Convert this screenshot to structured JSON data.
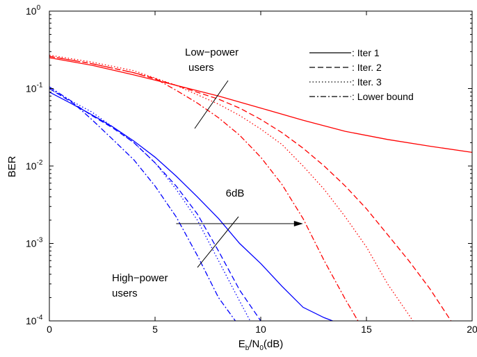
{
  "chart_data": {
    "type": "line",
    "xlabel_main": "E",
    "xlabel_sub1": "b",
    "xlabel_mid": "/N",
    "xlabel_sub2": "0",
    "xlabel_tail": "(dB)",
    "ylabel": "BER",
    "xlim": [
      0,
      20
    ],
    "ylim": [
      0.0001,
      1
    ],
    "yscale": "log",
    "grid": false,
    "x_ticks": [
      "0",
      "5",
      "10",
      "15",
      "20"
    ],
    "y_ticks": [
      {
        "base": "10",
        "exp": "0",
        "value": 1
      },
      {
        "base": "10",
        "exp": "-1",
        "value": 0.1
      },
      {
        "base": "10",
        "exp": "-2",
        "value": 0.01
      },
      {
        "base": "10",
        "exp": "-3",
        "value": 0.001
      },
      {
        "base": "10",
        "exp": "-4",
        "value": 0.0001
      }
    ],
    "legend": {
      "placement": "top-right",
      "entries": [
        {
          "label": ": Iter 1",
          "dash": "solid"
        },
        {
          "label": ": Iter. 2",
          "dash": "dashed"
        },
        {
          "label": ": Iter. 3",
          "dash": "dotted"
        },
        {
          "label": ": Lower bound",
          "dash": "dashdot"
        }
      ]
    },
    "colors": {
      "low_power": "#ff0000",
      "high_power": "#0000ff"
    },
    "annotations": {
      "low_power": "Low−power users",
      "high_power": "High−power users",
      "gap": "6dB",
      "gap_from_x": 6,
      "gap_to_x": 12,
      "gap_y": 0.0018
    },
    "series": [
      {
        "group": "low_power",
        "dash": "solid",
        "x": [
          0,
          2,
          4,
          6,
          8,
          10,
          12,
          14,
          16,
          18,
          20
        ],
        "y": [
          0.25,
          0.2,
          0.15,
          0.11,
          0.08,
          0.056,
          0.039,
          0.028,
          0.022,
          0.018,
          0.015
        ]
      },
      {
        "group": "low_power",
        "dash": "dashed",
        "x": [
          0,
          2,
          4,
          6,
          8,
          9,
          10,
          11,
          12,
          13,
          14,
          15,
          16,
          17,
          18,
          19
        ],
        "y": [
          0.26,
          0.21,
          0.16,
          0.11,
          0.073,
          0.056,
          0.04,
          0.027,
          0.017,
          0.01,
          0.0055,
          0.0028,
          0.0013,
          0.0006,
          0.00026,
          0.0001
        ]
      },
      {
        "group": "low_power",
        "dash": "dotted",
        "x": [
          0,
          2,
          4,
          6,
          8,
          9,
          10,
          11,
          12,
          13,
          14,
          15,
          16,
          17.2
        ],
        "y": [
          0.27,
          0.22,
          0.17,
          0.11,
          0.063,
          0.045,
          0.03,
          0.019,
          0.01,
          0.005,
          0.0022,
          0.0009,
          0.0003,
          0.0001
        ]
      },
      {
        "group": "low_power",
        "dash": "dashdot",
        "x": [
          0,
          2,
          4,
          5,
          6,
          7,
          8,
          9,
          10,
          11,
          12,
          13,
          14,
          14.6
        ],
        "y": [
          0.26,
          0.21,
          0.16,
          0.135,
          0.095,
          0.065,
          0.042,
          0.025,
          0.013,
          0.0058,
          0.0021,
          0.0006,
          0.00019,
          0.0001
        ]
      },
      {
        "group": "high_power",
        "dash": "solid",
        "x": [
          0,
          1,
          2,
          3,
          4,
          5,
          6,
          7,
          8,
          9,
          10,
          11,
          12,
          13,
          13.4
        ],
        "y": [
          0.09,
          0.065,
          0.046,
          0.032,
          0.021,
          0.013,
          0.0074,
          0.004,
          0.0021,
          0.001,
          0.00055,
          0.00028,
          0.00015,
          0.00011,
          0.0001
        ]
      },
      {
        "group": "high_power",
        "dash": "dashed",
        "x": [
          0,
          1,
          2,
          3,
          4,
          5,
          6,
          7,
          8,
          9,
          10
        ],
        "y": [
          0.1,
          0.068,
          0.045,
          0.031,
          0.02,
          0.011,
          0.0055,
          0.0024,
          0.0008,
          0.00025,
          0.0001
        ]
      },
      {
        "group": "high_power",
        "dash": "dotted",
        "x": [
          0,
          1,
          2,
          3,
          4,
          5,
          6,
          7,
          8,
          9,
          9.5
        ],
        "y": [
          0.1,
          0.07,
          0.05,
          0.032,
          0.02,
          0.011,
          0.005,
          0.002,
          0.0006,
          0.00018,
          0.0001
        ]
      },
      {
        "group": "high_power",
        "dash": "dashdot",
        "x": [
          0,
          1,
          2,
          3,
          4,
          5,
          6,
          7,
          8,
          8.8
        ],
        "y": [
          0.105,
          0.07,
          0.04,
          0.022,
          0.012,
          0.0055,
          0.0022,
          0.0007,
          0.0002,
          0.0001
        ]
      }
    ]
  }
}
